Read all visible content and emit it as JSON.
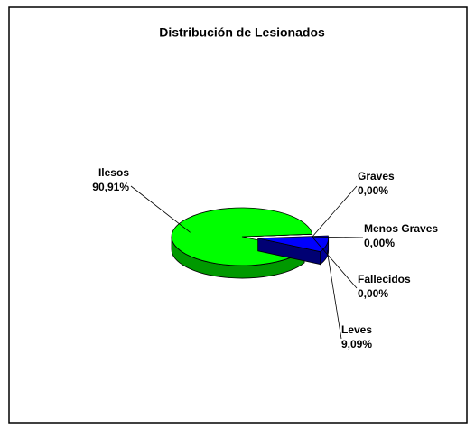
{
  "chart_data": {
    "type": "pie3d",
    "title": "Distribución de Lesionados",
    "categories": [
      "Graves",
      "Menos Graves",
      "Fallecidos",
      "Leves",
      "Ilesos"
    ],
    "values": [
      0,
      0,
      0,
      9.09,
      90.91
    ],
    "value_labels": [
      "0,00%",
      "0,00%",
      "0,00%",
      "9,09%",
      "90,91%"
    ],
    "colors": [
      "#000000",
      "#000000",
      "#000000",
      "#0000ff",
      "#00ff00"
    ]
  }
}
